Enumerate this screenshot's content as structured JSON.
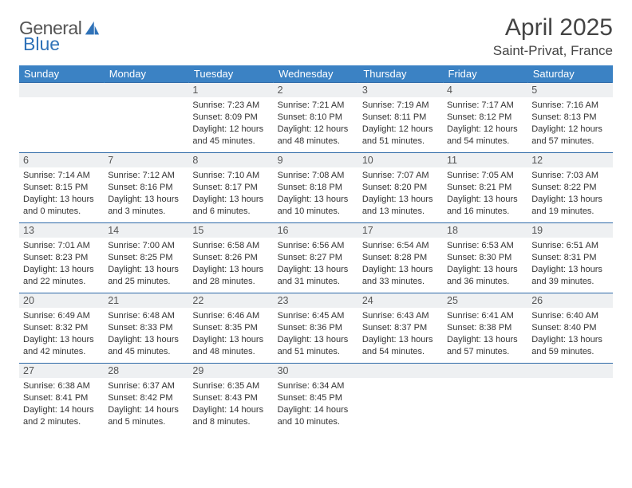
{
  "brand": {
    "name1": "General",
    "name2": "Blue"
  },
  "title": "April 2025",
  "location": "Saint-Privat, France",
  "colors": {
    "header_bg": "#3b82c4",
    "header_text": "#ffffff",
    "daynum_bg": "#eef0f2",
    "border": "#2f6aa8",
    "brand_gray": "#555555",
    "brand_blue": "#2f72b8"
  },
  "weekdays": [
    "Sunday",
    "Monday",
    "Tuesday",
    "Wednesday",
    "Thursday",
    "Friday",
    "Saturday"
  ],
  "weeks": [
    [
      null,
      null,
      {
        "n": "1",
        "sr": "7:23 AM",
        "ss": "8:09 PM",
        "dl": "12 hours and 45 minutes."
      },
      {
        "n": "2",
        "sr": "7:21 AM",
        "ss": "8:10 PM",
        "dl": "12 hours and 48 minutes."
      },
      {
        "n": "3",
        "sr": "7:19 AM",
        "ss": "8:11 PM",
        "dl": "12 hours and 51 minutes."
      },
      {
        "n": "4",
        "sr": "7:17 AM",
        "ss": "8:12 PM",
        "dl": "12 hours and 54 minutes."
      },
      {
        "n": "5",
        "sr": "7:16 AM",
        "ss": "8:13 PM",
        "dl": "12 hours and 57 minutes."
      }
    ],
    [
      {
        "n": "6",
        "sr": "7:14 AM",
        "ss": "8:15 PM",
        "dl": "13 hours and 0 minutes."
      },
      {
        "n": "7",
        "sr": "7:12 AM",
        "ss": "8:16 PM",
        "dl": "13 hours and 3 minutes."
      },
      {
        "n": "8",
        "sr": "7:10 AM",
        "ss": "8:17 PM",
        "dl": "13 hours and 6 minutes."
      },
      {
        "n": "9",
        "sr": "7:08 AM",
        "ss": "8:18 PM",
        "dl": "13 hours and 10 minutes."
      },
      {
        "n": "10",
        "sr": "7:07 AM",
        "ss": "8:20 PM",
        "dl": "13 hours and 13 minutes."
      },
      {
        "n": "11",
        "sr": "7:05 AM",
        "ss": "8:21 PM",
        "dl": "13 hours and 16 minutes."
      },
      {
        "n": "12",
        "sr": "7:03 AM",
        "ss": "8:22 PM",
        "dl": "13 hours and 19 minutes."
      }
    ],
    [
      {
        "n": "13",
        "sr": "7:01 AM",
        "ss": "8:23 PM",
        "dl": "13 hours and 22 minutes."
      },
      {
        "n": "14",
        "sr": "7:00 AM",
        "ss": "8:25 PM",
        "dl": "13 hours and 25 minutes."
      },
      {
        "n": "15",
        "sr": "6:58 AM",
        "ss": "8:26 PM",
        "dl": "13 hours and 28 minutes."
      },
      {
        "n": "16",
        "sr": "6:56 AM",
        "ss": "8:27 PM",
        "dl": "13 hours and 31 minutes."
      },
      {
        "n": "17",
        "sr": "6:54 AM",
        "ss": "8:28 PM",
        "dl": "13 hours and 33 minutes."
      },
      {
        "n": "18",
        "sr": "6:53 AM",
        "ss": "8:30 PM",
        "dl": "13 hours and 36 minutes."
      },
      {
        "n": "19",
        "sr": "6:51 AM",
        "ss": "8:31 PM",
        "dl": "13 hours and 39 minutes."
      }
    ],
    [
      {
        "n": "20",
        "sr": "6:49 AM",
        "ss": "8:32 PM",
        "dl": "13 hours and 42 minutes."
      },
      {
        "n": "21",
        "sr": "6:48 AM",
        "ss": "8:33 PM",
        "dl": "13 hours and 45 minutes."
      },
      {
        "n": "22",
        "sr": "6:46 AM",
        "ss": "8:35 PM",
        "dl": "13 hours and 48 minutes."
      },
      {
        "n": "23",
        "sr": "6:45 AM",
        "ss": "8:36 PM",
        "dl": "13 hours and 51 minutes."
      },
      {
        "n": "24",
        "sr": "6:43 AM",
        "ss": "8:37 PM",
        "dl": "13 hours and 54 minutes."
      },
      {
        "n": "25",
        "sr": "6:41 AM",
        "ss": "8:38 PM",
        "dl": "13 hours and 57 minutes."
      },
      {
        "n": "26",
        "sr": "6:40 AM",
        "ss": "8:40 PM",
        "dl": "13 hours and 59 minutes."
      }
    ],
    [
      {
        "n": "27",
        "sr": "6:38 AM",
        "ss": "8:41 PM",
        "dl": "14 hours and 2 minutes."
      },
      {
        "n": "28",
        "sr": "6:37 AM",
        "ss": "8:42 PM",
        "dl": "14 hours and 5 minutes."
      },
      {
        "n": "29",
        "sr": "6:35 AM",
        "ss": "8:43 PM",
        "dl": "14 hours and 8 minutes."
      },
      {
        "n": "30",
        "sr": "6:34 AM",
        "ss": "8:45 PM",
        "dl": "14 hours and 10 minutes."
      },
      null,
      null,
      null
    ]
  ],
  "labels": {
    "sunrise": "Sunrise: ",
    "sunset": "Sunset: ",
    "daylight": "Daylight: "
  }
}
